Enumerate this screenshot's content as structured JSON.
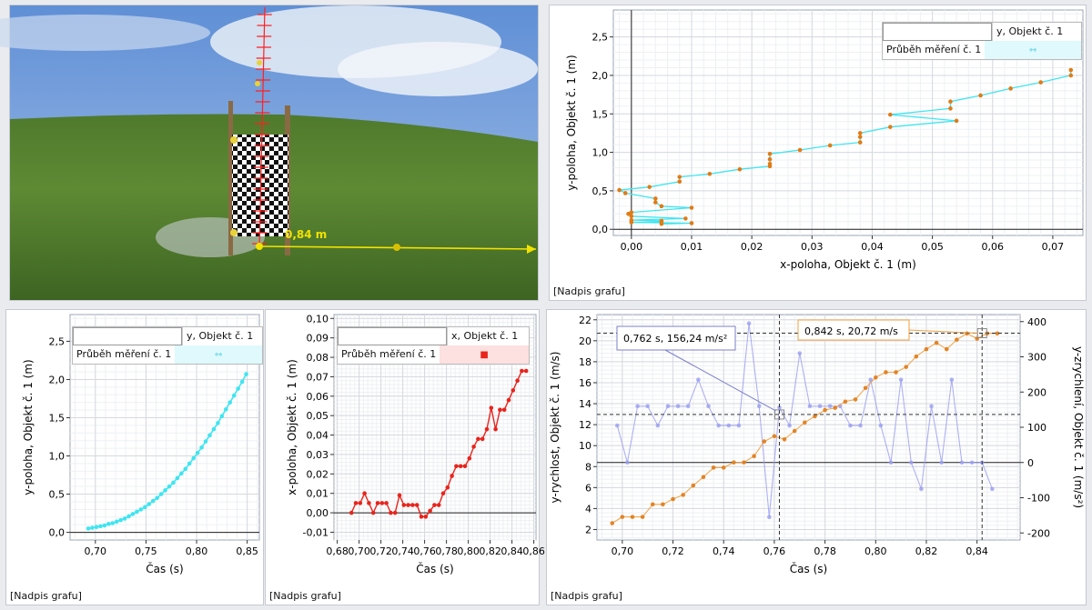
{
  "video": {
    "distance_label": "0,84 m"
  },
  "colors": {
    "cyan": "#3fe5f0",
    "red": "#e8241c",
    "orange": "#f0a040",
    "orange_dark": "#e07b16",
    "lilac": "#9a9ff0",
    "yellow": "#f2e200"
  },
  "chart_data": [
    {
      "id": "xy",
      "type": "line",
      "xlabel": "x-poloha, Objekt č. 1 (m)",
      "ylabel": "y-poloha, Objekt č. 1 (m)",
      "xlim": [
        -0.003,
        0.075
      ],
      "ylim": [
        -0.08,
        2.85
      ],
      "xticks": [
        "0,00",
        "0,01",
        "0,02",
        "0,03",
        "0,04",
        "0,05",
        "0,06",
        "0,07"
      ],
      "yticks": [
        "0,0",
        "0,5",
        "1,0",
        "1,5",
        "2,0",
        "2,5"
      ],
      "legend": {
        "header": "y, Objekt č. 1",
        "series": "Průběh měření č. 1"
      },
      "caption": "[Nadpis grafu]",
      "series": [
        {
          "name": "Průběh měření č. 1",
          "points": [
            [
              0.005,
              0.07
            ],
            [
              0.01,
              0.08
            ],
            [
              0,
              0.09
            ],
            [
              0.005,
              0.1
            ],
            [
              0.005,
              0.11
            ],
            [
              0,
              0.12
            ],
            [
              0.009,
              0.14
            ],
            [
              0,
              0.17
            ],
            [
              -0.0005,
              0.2
            ],
            [
              0.0,
              0.22
            ],
            [
              0.01,
              0.28
            ],
            [
              0.005,
              0.3
            ],
            [
              0.004,
              0.35
            ],
            [
              0.004,
              0.4
            ],
            [
              -0.001,
              0.47
            ],
            [
              -0.002,
              0.51
            ],
            [
              0.003,
              0.55
            ],
            [
              0.008,
              0.62
            ],
            [
              0.008,
              0.68
            ],
            [
              0.013,
              0.72
            ],
            [
              0.018,
              0.78
            ],
            [
              0.023,
              0.82
            ],
            [
              0.023,
              0.85
            ],
            [
              0.023,
              0.91
            ],
            [
              0.023,
              0.98
            ],
            [
              0.028,
              1.03
            ],
            [
              0.033,
              1.09
            ],
            [
              0.038,
              1.13
            ],
            [
              0.038,
              1.2
            ],
            [
              0.038,
              1.25
            ],
            [
              0.043,
              1.33
            ],
            [
              0.054,
              1.41
            ],
            [
              0.043,
              1.49
            ],
            [
              0.053,
              1.57
            ],
            [
              0.053,
              1.66
            ],
            [
              0.058,
              1.74
            ],
            [
              0.063,
              1.83
            ],
            [
              0.068,
              1.91
            ],
            [
              0.073,
              2.0
            ],
            [
              0.073,
              2.07
            ]
          ]
        }
      ]
    },
    {
      "id": "yt",
      "type": "line",
      "xlabel": "Čas (s)",
      "ylabel": "y-poloha, Objekt č. 1 (m)",
      "xlim": [
        0.675,
        0.862
      ],
      "ylim": [
        -0.1,
        2.85
      ],
      "xticks": [
        "0,70",
        "0,75",
        "0,80",
        "0,85"
      ],
      "yticks": [
        "0,0",
        "0,5",
        "1,0",
        "1,5",
        "2,0",
        "2,5"
      ],
      "legend": {
        "header": "y, Objekt č. 1",
        "series": "Průběh měření č. 1"
      },
      "caption": "[Nadpis grafu]",
      "series": [
        {
          "name": "Průběh měření č. 1",
          "points": [
            [
              0.693,
              0.05
            ],
            [
              0.697,
              0.06
            ],
            [
              0.701,
              0.07
            ],
            [
              0.705,
              0.08
            ],
            [
              0.709,
              0.09
            ],
            [
              0.713,
              0.11
            ],
            [
              0.717,
              0.12
            ],
            [
              0.721,
              0.14
            ],
            [
              0.725,
              0.16
            ],
            [
              0.729,
              0.18
            ],
            [
              0.733,
              0.21
            ],
            [
              0.737,
              0.24
            ],
            [
              0.741,
              0.27
            ],
            [
              0.745,
              0.3
            ],
            [
              0.749,
              0.33
            ],
            [
              0.753,
              0.37
            ],
            [
              0.757,
              0.41
            ],
            [
              0.761,
              0.45
            ],
            [
              0.765,
              0.5
            ],
            [
              0.769,
              0.55
            ],
            [
              0.773,
              0.6
            ],
            [
              0.777,
              0.65
            ],
            [
              0.781,
              0.71
            ],
            [
              0.785,
              0.77
            ],
            [
              0.789,
              0.83
            ],
            [
              0.793,
              0.9
            ],
            [
              0.797,
              0.97
            ],
            [
              0.801,
              1.04
            ],
            [
              0.805,
              1.11
            ],
            [
              0.809,
              1.19
            ],
            [
              0.813,
              1.27
            ],
            [
              0.817,
              1.35
            ],
            [
              0.821,
              1.43
            ],
            [
              0.825,
              1.52
            ],
            [
              0.829,
              1.61
            ],
            [
              0.833,
              1.7
            ],
            [
              0.837,
              1.79
            ],
            [
              0.841,
              1.88
            ],
            [
              0.845,
              1.97
            ],
            [
              0.849,
              2.07
            ]
          ]
        }
      ]
    },
    {
      "id": "xt",
      "type": "line",
      "xlabel": "Čas (s)",
      "ylabel": "x-poloha, Objekt č. 1 (m)",
      "xlim": [
        0.677,
        0.862
      ],
      "ylim": [
        -0.014,
        0.102
      ],
      "xticks": [
        "0,68",
        "0,70",
        "0,72",
        "0,74",
        "0,76",
        "0,78",
        "0,80",
        "0,82",
        "0,84",
        "0,86"
      ],
      "yticks": [
        "-0,01",
        "0,00",
        "0,01",
        "0,02",
        "0,03",
        "0,04",
        "0,05",
        "0,06",
        "0,07",
        "0,08",
        "0,09",
        "0,10"
      ],
      "legend": {
        "header": "x, Objekt č. 1",
        "series": "Průběh měření č. 1"
      },
      "caption": "[Nadpis grafu]",
      "series": [
        {
          "name": "Průběh měření č. 1",
          "points": [
            [
              0.693,
              0
            ],
            [
              0.697,
              0.005
            ],
            [
              0.701,
              0.005
            ],
            [
              0.705,
              0.01
            ],
            [
              0.709,
              0.005
            ],
            [
              0.713,
              0
            ],
            [
              0.717,
              0.005
            ],
            [
              0.721,
              0.005
            ],
            [
              0.725,
              0.005
            ],
            [
              0.729,
              0
            ],
            [
              0.733,
              0
            ],
            [
              0.737,
              0.009
            ],
            [
              0.741,
              0.004
            ],
            [
              0.745,
              0.004
            ],
            [
              0.749,
              0.004
            ],
            [
              0.753,
              0.004
            ],
            [
              0.757,
              -0.002
            ],
            [
              0.761,
              -0.002
            ],
            [
              0.765,
              0.001
            ],
            [
              0.769,
              0.004
            ],
            [
              0.773,
              0.004
            ],
            [
              0.777,
              0.01
            ],
            [
              0.781,
              0.013
            ],
            [
              0.785,
              0.019
            ],
            [
              0.789,
              0.024
            ],
            [
              0.793,
              0.024
            ],
            [
              0.797,
              0.024
            ],
            [
              0.801,
              0.028
            ],
            [
              0.805,
              0.034
            ],
            [
              0.809,
              0.038
            ],
            [
              0.813,
              0.038
            ],
            [
              0.817,
              0.043
            ],
            [
              0.821,
              0.054
            ],
            [
              0.825,
              0.043
            ],
            [
              0.829,
              0.053
            ],
            [
              0.833,
              0.053
            ],
            [
              0.837,
              0.058
            ],
            [
              0.841,
              0.063
            ],
            [
              0.845,
              0.068
            ],
            [
              0.849,
              0.073
            ],
            [
              0.853,
              0.073
            ]
          ]
        }
      ]
    },
    {
      "id": "vt",
      "type": "line",
      "xlabel": "Čas (s)",
      "ylabel": "y-rychlost, Objekt č. 1 (m/s)",
      "y2label": "y-zrychlení, Objekt č. 1 (m/s²)",
      "xlim": [
        0.69,
        0.857
      ],
      "ylim": [
        1,
        22.5
      ],
      "y2lim": [
        -220,
        420
      ],
      "xticks": [
        "0,70",
        "0,72",
        "0,74",
        "0,76",
        "0,78",
        "0,80",
        "0,82",
        "0,84"
      ],
      "yticks": [
        "2",
        "4",
        "6",
        "8",
        "10",
        "12",
        "14",
        "16",
        "18",
        "20",
        "22"
      ],
      "y2ticks": [
        "-200",
        "-100",
        "0",
        "100",
        "200",
        "300",
        "400"
      ],
      "caption": "[Nadpis grafu]",
      "annotations": [
        "0,762 s, 156,24 m/s²",
        "0,842 s, 20,72 m/s"
      ],
      "cursors": [
        [
          0.762,
          12.97
        ],
        [
          0.842,
          20.72
        ]
      ],
      "series": [
        {
          "axis": "left",
          "points": [
            [
              0.696,
              2.6
            ],
            [
              0.7,
              3.2
            ],
            [
              0.704,
              3.2
            ],
            [
              0.708,
              3.2
            ],
            [
              0.712,
              4.4
            ],
            [
              0.716,
              4.4
            ],
            [
              0.72,
              4.9
            ],
            [
              0.724,
              5.3
            ],
            [
              0.728,
              6.2
            ],
            [
              0.732,
              7.0
            ],
            [
              0.736,
              7.9
            ],
            [
              0.74,
              7.9
            ],
            [
              0.744,
              8.4
            ],
            [
              0.748,
              8.4
            ],
            [
              0.752,
              9.0
            ],
            [
              0.756,
              10.4
            ],
            [
              0.76,
              10.9
            ],
            [
              0.764,
              10.6
            ],
            [
              0.768,
              11.4
            ],
            [
              0.772,
              12.2
            ],
            [
              0.776,
              12.8
            ],
            [
              0.78,
              13.4
            ],
            [
              0.784,
              13.6
            ],
            [
              0.788,
              14.2
            ],
            [
              0.792,
              14.4
            ],
            [
              0.796,
              15.5
            ],
            [
              0.8,
              16.5
            ],
            [
              0.804,
              17.0
            ],
            [
              0.808,
              17.0
            ],
            [
              0.812,
              17.5
            ],
            [
              0.816,
              18.5
            ],
            [
              0.82,
              19.2
            ],
            [
              0.824,
              19.8
            ],
            [
              0.828,
              19.2
            ],
            [
              0.832,
              20.1
            ],
            [
              0.836,
              20.7
            ],
            [
              0.84,
              20.2
            ],
            [
              0.844,
              20.7
            ],
            [
              0.848,
              20.7
            ]
          ]
        },
        {
          "axis": "right",
          "points": [
            [
              0.698,
              105
            ],
            [
              0.702,
              0
            ],
            [
              0.706,
              160
            ],
            [
              0.71,
              160
            ],
            [
              0.714,
              105
            ],
            [
              0.718,
              160
            ],
            [
              0.722,
              160
            ],
            [
              0.726,
              160
            ],
            [
              0.73,
              235
            ],
            [
              0.734,
              160
            ],
            [
              0.738,
              105
            ],
            [
              0.742,
              105
            ],
            [
              0.746,
              105
            ],
            [
              0.75,
              395
            ],
            [
              0.754,
              160
            ],
            [
              0.758,
              -155
            ],
            [
              0.762,
              156
            ],
            [
              0.766,
              105
            ],
            [
              0.77,
              310
            ],
            [
              0.774,
              160
            ],
            [
              0.778,
              160
            ],
            [
              0.782,
              160
            ],
            [
              0.786,
              160
            ],
            [
              0.79,
              105
            ],
            [
              0.794,
              105
            ],
            [
              0.798,
              235
            ],
            [
              0.802,
              105
            ],
            [
              0.806,
              0
            ],
            [
              0.81,
              235
            ],
            [
              0.814,
              0
            ],
            [
              0.818,
              -75
            ],
            [
              0.822,
              160
            ],
            [
              0.826,
              0
            ],
            [
              0.83,
              235
            ],
            [
              0.834,
              0
            ],
            [
              0.838,
              0
            ],
            [
              0.842,
              0
            ],
            [
              0.846,
              -75
            ]
          ]
        }
      ]
    }
  ]
}
